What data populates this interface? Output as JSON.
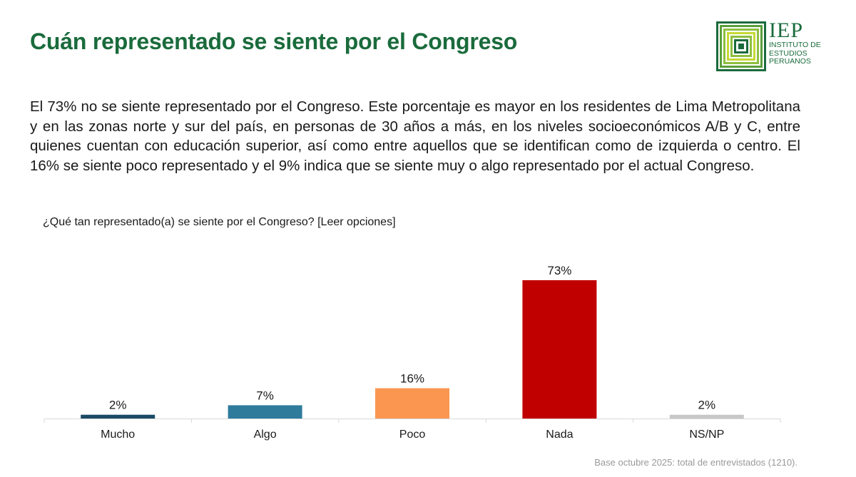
{
  "header": {
    "title": "Cuán representado se siente por el Congreso"
  },
  "logo": {
    "acronym": "IEP",
    "line1": "INSTITUTO DE",
    "line2": "ESTUDIOS",
    "line3": "PERUANOS",
    "color": "#1a6b3c"
  },
  "summary": {
    "text": "El 73% no se siente representado por el Congreso. Este porcentaje es mayor en los residentes de Lima Metropolitana y en las zonas norte y sur del país, en personas de 30 años a más, en los niveles socioeconómicos A/B y C, entre quienes cuentan con educación superior, así como entre aquellos que se identifican como de izquierda o centro. El 16% se siente poco representado y el 9% indica que se siente muy o algo representado por el actual Congreso."
  },
  "chart_data": {
    "type": "bar",
    "title": "¿Qué tan representado(a) se siente por el Congreso?  [Leer opciones]",
    "categories": [
      "Mucho",
      "Algo",
      "Poco",
      "Nada",
      "NS/NP"
    ],
    "values": [
      2,
      7,
      16,
      73,
      2
    ],
    "value_labels": [
      "2%",
      "7%",
      "16%",
      "73%",
      "2%"
    ],
    "colors": [
      "#1b4a66",
      "#2e7b9c",
      "#fa9650",
      "#c00000",
      "#c8c8c8"
    ],
    "ylim": [
      0,
      73
    ],
    "xlabel": "",
    "ylabel": "",
    "grid": false
  },
  "footer": {
    "note": "Base octubre 2025: total de entrevistados (1210)."
  }
}
